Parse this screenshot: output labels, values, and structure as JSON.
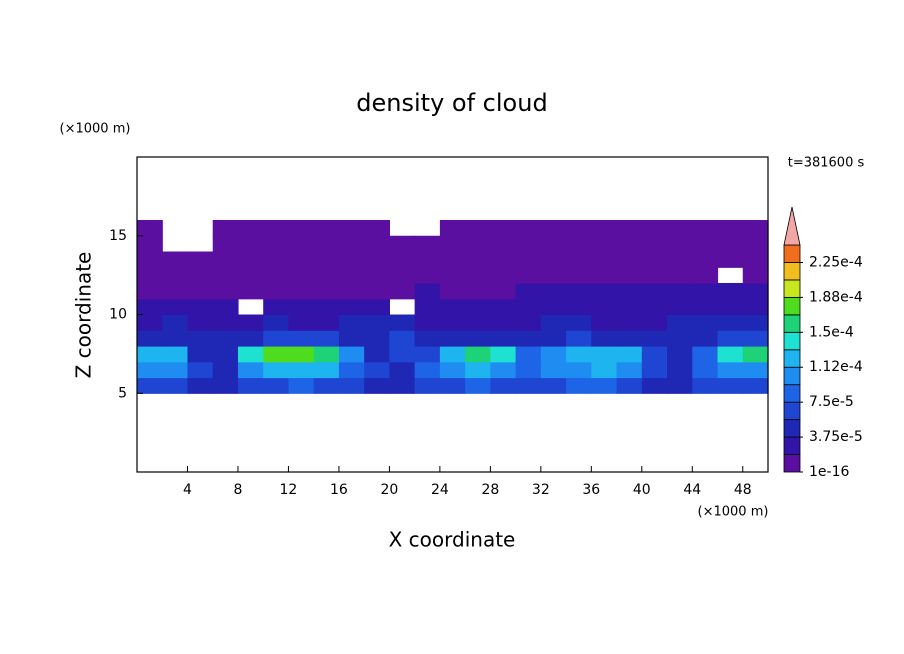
{
  "chart_data": {
    "type": "contour",
    "title": "density of cloud",
    "x_label": "X coordinate",
    "y_label": "Z coordinate",
    "x_unit": "(×1000 m)",
    "y_unit": "(×1000 m)",
    "time_label": "t=381600 s",
    "xlim": [
      0,
      50
    ],
    "ylim": [
      0,
      20
    ],
    "xticks": [
      4,
      8,
      12,
      16,
      20,
      24,
      28,
      32,
      36,
      40,
      44,
      48
    ],
    "yticks": [
      5,
      10,
      15
    ],
    "field": {
      "x": [
        1,
        3,
        5,
        7,
        9,
        11,
        13,
        15,
        17,
        19,
        21,
        23,
        25,
        27,
        29,
        31,
        33,
        35,
        37,
        39,
        41,
        43,
        45,
        47,
        49
      ],
      "y": [
        5.5,
        6.5,
        7.5,
        8.5,
        9.5,
        10.5,
        11.5,
        12.5,
        13.5,
        14.5,
        15.5
      ],
      "values": [
        [
          6e-05,
          6e-05,
          5e-05,
          5e-05,
          6e-05,
          7e-05,
          8e-05,
          7e-05,
          6e-05,
          5e-05,
          4e-05,
          6e-05,
          7e-05,
          8e-05,
          7e-05,
          6e-05,
          7e-05,
          8e-05,
          8e-05,
          7e-05,
          5e-05,
          4e-05,
          6e-05,
          7e-05,
          6e-05
        ],
        [
          0.00011,
          0.0001,
          6e-05,
          5e-05,
          0.0001,
          0.00012,
          0.00013,
          0.00012,
          9e-05,
          6e-05,
          5e-05,
          8e-05,
          0.00011,
          0.00012,
          0.00011,
          8e-05,
          0.0001,
          0.00011,
          0.00012,
          0.0001,
          7e-05,
          5e-05,
          8e-05,
          0.00011,
          0.00011
        ],
        [
          0.00013,
          0.00012,
          5e-05,
          4e-05,
          0.00014,
          0.00017,
          0.00018,
          0.00016,
          0.0001,
          5e-05,
          6e-05,
          6e-05,
          0.00013,
          0.00015,
          0.00014,
          8e-05,
          0.00011,
          0.00013,
          0.00013,
          0.00012,
          6e-05,
          5e-05,
          9e-05,
          0.00014,
          0.00015
        ],
        [
          4e-05,
          4e-05,
          5e-05,
          4e-05,
          5e-05,
          7e-05,
          7e-05,
          6e-05,
          4e-05,
          5e-05,
          6e-05,
          5e-05,
          4e-05,
          5e-05,
          4e-05,
          4e-05,
          5e-05,
          6e-05,
          5e-05,
          5e-05,
          4e-05,
          4e-05,
          5e-05,
          6e-05,
          6e-05
        ],
        [
          3e-05,
          4e-05,
          3e-05,
          3e-05,
          3e-05,
          4e-05,
          3e-05,
          3e-05,
          4e-05,
          5e-05,
          4e-05,
          3e-05,
          3e-05,
          3e-05,
          3e-05,
          3e-05,
          4e-05,
          4e-05,
          3e-05,
          3e-05,
          3e-05,
          4e-05,
          4e-05,
          5e-05,
          4e-05
        ],
        [
          2e-05,
          2e-05,
          2e-05,
          2e-05,
          null,
          2e-05,
          2e-05,
          2e-05,
          2e-05,
          2e-05,
          null,
          2e-05,
          2e-05,
          2e-05,
          2e-05,
          2e-05,
          3e-05,
          3e-05,
          2e-05,
          3e-05,
          3e-05,
          3e-05,
          3e-05,
          3e-05,
          2e-05
        ],
        [
          1.5e-05,
          1.5e-05,
          1e-05,
          1e-05,
          1.5e-05,
          1.5e-05,
          1e-05,
          1e-05,
          1.5e-05,
          1.5e-05,
          1.5e-05,
          2e-05,
          1.5e-05,
          1.5e-05,
          1.5e-05,
          2e-05,
          2e-05,
          2e-05,
          2e-05,
          2e-05,
          2e-05,
          2e-05,
          2e-05,
          2e-05,
          2e-05
        ],
        [
          8e-06,
          8e-06,
          8e-06,
          8e-06,
          8e-06,
          8e-06,
          8e-06,
          8e-06,
          8e-06,
          8e-06,
          8e-06,
          8e-06,
          8e-06,
          8e-06,
          8e-06,
          8e-06,
          8e-06,
          8e-06,
          8e-06,
          8e-06,
          8e-06,
          8e-06,
          8e-06,
          null,
          8e-06
        ],
        [
          8e-06,
          8e-06,
          8e-06,
          8e-06,
          8e-06,
          8e-06,
          8e-06,
          8e-06,
          8e-06,
          8e-06,
          8e-06,
          8e-06,
          8e-06,
          8e-06,
          8e-06,
          8e-06,
          8e-06,
          8e-06,
          8e-06,
          8e-06,
          8e-06,
          8e-06,
          8e-06,
          8e-06,
          8e-06
        ],
        [
          8e-06,
          null,
          null,
          8e-06,
          8e-06,
          8e-06,
          8e-06,
          8e-06,
          8e-06,
          8e-06,
          8e-06,
          8e-06,
          8e-06,
          8e-06,
          8e-06,
          8e-06,
          8e-06,
          8e-06,
          8e-06,
          8e-06,
          8e-06,
          8e-06,
          8e-06,
          8e-06,
          8e-06
        ],
        [
          8e-06,
          null,
          null,
          8e-06,
          8e-06,
          8e-06,
          8e-06,
          8e-06,
          8e-06,
          8e-06,
          null,
          null,
          8e-06,
          8e-06,
          8e-06,
          8e-06,
          8e-06,
          8e-06,
          8e-06,
          8e-06,
          8e-06,
          8e-06,
          8e-06,
          8e-06,
          8e-06
        ]
      ]
    },
    "colorbar": {
      "levels": [
        1e-16,
        1.875e-05,
        3.75e-05,
        5.625e-05,
        7.5e-05,
        9.375e-05,
        0.0001125,
        0.00013125,
        0.00015,
        0.00016875,
        0.0001875,
        0.00020625,
        0.000225,
        0.00024375
      ],
      "colors": [
        "#5a0fa0",
        "#3214a8",
        "#1e28b4",
        "#1e46d2",
        "#1e64e6",
        "#1e8cf0",
        "#1eb4f0",
        "#1ee1d2",
        "#1ed278",
        "#50dc1e",
        "#c8e61e",
        "#f0be1e",
        "#f06e1e"
      ],
      "over_color": "#f4a6a6",
      "ticks": [
        {
          "value": 1e-16,
          "label": "1e-16"
        },
        {
          "value": 3.75e-05,
          "label": "3.75e-5"
        },
        {
          "value": 7.5e-05,
          "label": "7.5e-5"
        },
        {
          "value": 0.0001125,
          "label": "1.12e-4"
        },
        {
          "value": 0.00015,
          "label": "1.5e-4"
        },
        {
          "value": 0.0001875,
          "label": "1.88e-4"
        },
        {
          "value": 0.000225,
          "label": "2.25e-4"
        }
      ]
    }
  }
}
